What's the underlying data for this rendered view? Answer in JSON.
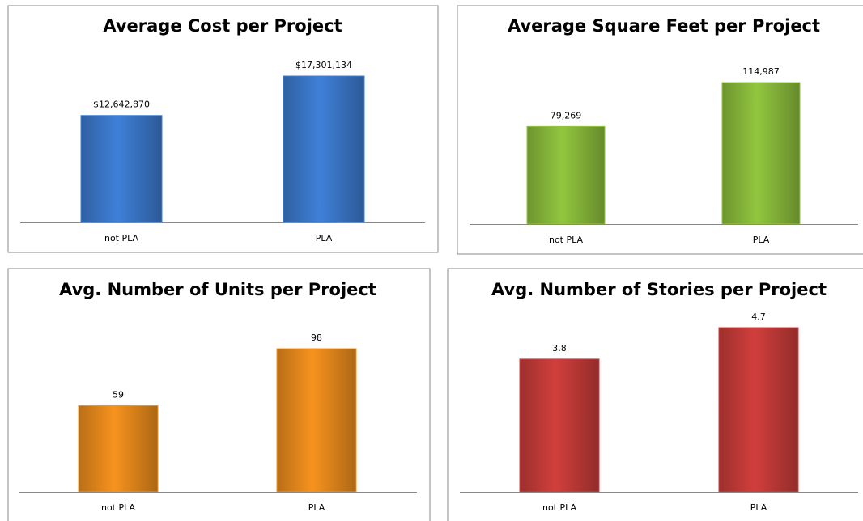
{
  "chart_data": [
    {
      "type": "bar",
      "title": "Average Cost per Project",
      "categories": [
        "not PLA",
        "PLA"
      ],
      "values": [
        12642870,
        17301134
      ],
      "value_labels": [
        "$12,642,870",
        "$17,301,134"
      ],
      "color": "#3f80d8"
    },
    {
      "type": "bar",
      "title": "Average Square Feet per Project",
      "categories": [
        "not PLA",
        "PLA"
      ],
      "values": [
        79269,
        114987
      ],
      "value_labels": [
        "79,269",
        "114,987"
      ],
      "color": "#92c63f"
    },
    {
      "type": "bar",
      "title": "Avg. Number of Units per Project",
      "categories": [
        "not PLA",
        "PLA"
      ],
      "values": [
        59,
        98
      ],
      "color": "#f7931e"
    },
    {
      "type": "bar",
      "title": "Avg. Number of Stories per Project",
      "categories": [
        "not PLA",
        "PLA"
      ],
      "values": [
        3.8,
        4.7
      ],
      "color": "#d13f3c"
    }
  ]
}
